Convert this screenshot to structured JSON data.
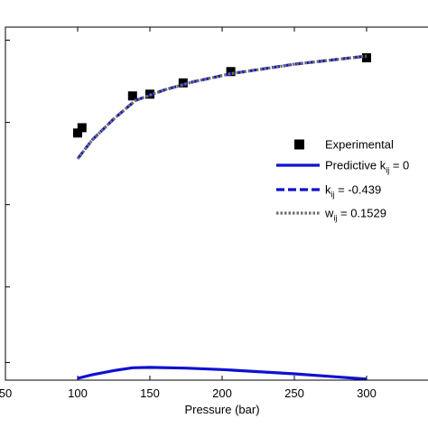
{
  "chart_data": {
    "type": "line",
    "xlabel": "Pressure (bar)",
    "xlim": [
      50,
      350
    ],
    "xticks": [
      {
        "value": 50,
        "label": "50"
      },
      {
        "value": 100,
        "label": "100"
      },
      {
        "value": 150,
        "label": "150"
      },
      {
        "value": 200,
        "label": "200"
      },
      {
        "value": 250,
        "label": "250"
      },
      {
        "value": 300,
        "label": "300"
      }
    ],
    "ylim": [
      0,
      1
    ],
    "yticks": [
      0.05,
      0.264,
      0.497,
      0.73,
      0.963
    ],
    "legend_position": "center-right",
    "series": [
      {
        "name": "Experimental",
        "style": "marker-square",
        "color": "#000000",
        "x": [
          100,
          103,
          138,
          150,
          173,
          206,
          300
        ],
        "y": [
          0.7,
          0.715,
          0.805,
          0.81,
          0.842,
          0.874,
          0.913
        ]
      },
      {
        "name_parts": {
          "main": "Predictive k",
          "sub": "ij",
          "tail": " = 0"
        },
        "style": "solid",
        "color": "#1010d0",
        "x": [
          100,
          110,
          125,
          138,
          150,
          175,
          200,
          250,
          300
        ],
        "y": [
          0.005,
          0.015,
          0.027,
          0.035,
          0.036,
          0.034,
          0.03,
          0.018,
          0.003
        ]
      },
      {
        "name_parts": {
          "main": "k",
          "sub": "ij",
          "tail": " = -0.439"
        },
        "style": "dashed",
        "color": "#1010d0",
        "x": [
          100,
          110,
          125,
          140,
          160,
          180,
          206,
          250,
          300
        ],
        "y": [
          0.627,
          0.68,
          0.74,
          0.792,
          0.822,
          0.845,
          0.868,
          0.895,
          0.918
        ]
      },
      {
        "name_parts": {
          "main": "w",
          "sub": "ij",
          "tail": " = 0.1529"
        },
        "style": "dotted",
        "color": "#6e6e6e",
        "x": [
          100,
          110,
          125,
          140,
          160,
          180,
          206,
          250,
          300
        ],
        "y": [
          0.627,
          0.68,
          0.74,
          0.792,
          0.822,
          0.845,
          0.868,
          0.895,
          0.918
        ]
      }
    ]
  }
}
